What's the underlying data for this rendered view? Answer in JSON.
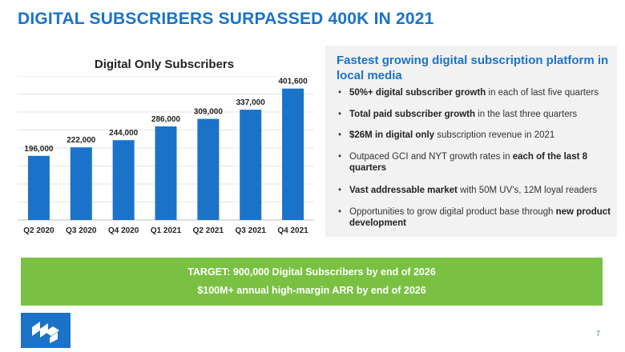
{
  "slide": {
    "title": "DIGITAL SUBSCRIBERS SURPASSED 400K IN 2021",
    "page_number": "7",
    "brand_color": "#1a73c8",
    "accent_color": "#7ac143"
  },
  "panel": {
    "heading": "Fastest growing digital subscription platform in local media",
    "bullets": [
      {
        "bold": "50%+ digital subscriber growth",
        "text": " in each of last five quarters"
      },
      {
        "bold": "Total paid subscriber growth",
        "text": " in the last three quarters"
      },
      {
        "bold": "$26M in digital only",
        "text": " subscription revenue in 2021"
      },
      {
        "pre": "Outpaced GCI and NYT growth rates in ",
        "bold": "each of the last 8 quarters"
      },
      {
        "bold": "Vast addressable market",
        "text": " with 50M UV's, 12M loyal readers"
      },
      {
        "pre": "Opportunities to grow digital product base through ",
        "bold": "new product development"
      }
    ]
  },
  "banner": {
    "line1": "TARGET: 900,000 Digital Subscribers by end of 2026",
    "line2": "$100M+ annual high-margin ARR by end of 2026"
  },
  "chart_data": {
    "type": "bar",
    "title": "Digital Only Subscribers",
    "categories": [
      "Q2 2020",
      "Q3 2020",
      "Q4 2020",
      "Q1 2021",
      "Q2 2021",
      "Q3 2021",
      "Q4 2021"
    ],
    "values": [
      196000,
      222000,
      244000,
      286000,
      309000,
      337000,
      401600
    ],
    "data_labels": [
      "196,000",
      "222,000",
      "244,000",
      "286,000",
      "309,000",
      "337,000",
      "401,600"
    ],
    "ylim": [
      0,
      440000
    ],
    "grid": true,
    "bar_color": "#1a73c8",
    "xlabel": "",
    "ylabel": ""
  }
}
